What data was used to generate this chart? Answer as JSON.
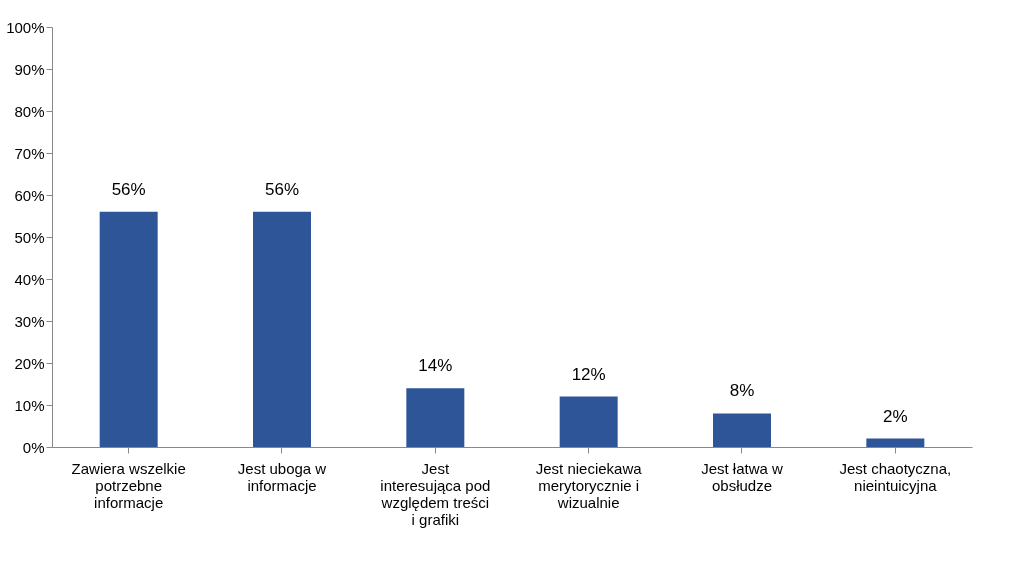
{
  "chart_data": {
    "type": "bar",
    "categories": [
      "Zawiera wszelkie potrzebne informacje",
      "Jest uboga w informacje",
      "Jest interesująca pod względem treści i grafiki",
      "Jest nieciekawa merytorycznie i wizualnie",
      "Jest łatwa w obsłudze",
      "Jest chaotyczna, nieintuicyjna"
    ],
    "values": [
      56,
      56,
      14,
      12,
      8,
      2
    ],
    "value_labels": [
      "56%",
      "56%",
      "14%",
      "12%",
      "8%",
      "2%"
    ],
    "color": "#2e5597",
    "ylim": [
      0,
      100
    ],
    "yticks": [
      {
        "value": 0,
        "label": "0%"
      },
      {
        "value": 10,
        "label": "10%"
      },
      {
        "value": 20,
        "label": "20%"
      },
      {
        "value": 30,
        "label": "30%"
      },
      {
        "value": 40,
        "label": "40%"
      },
      {
        "value": 50,
        "label": "50%"
      },
      {
        "value": 60,
        "label": "60%"
      },
      {
        "value": 70,
        "label": "70%"
      },
      {
        "value": 80,
        "label": "80%"
      },
      {
        "value": 90,
        "label": "90%"
      },
      {
        "value": 100,
        "label": "100%"
      }
    ],
    "grid": false
  }
}
